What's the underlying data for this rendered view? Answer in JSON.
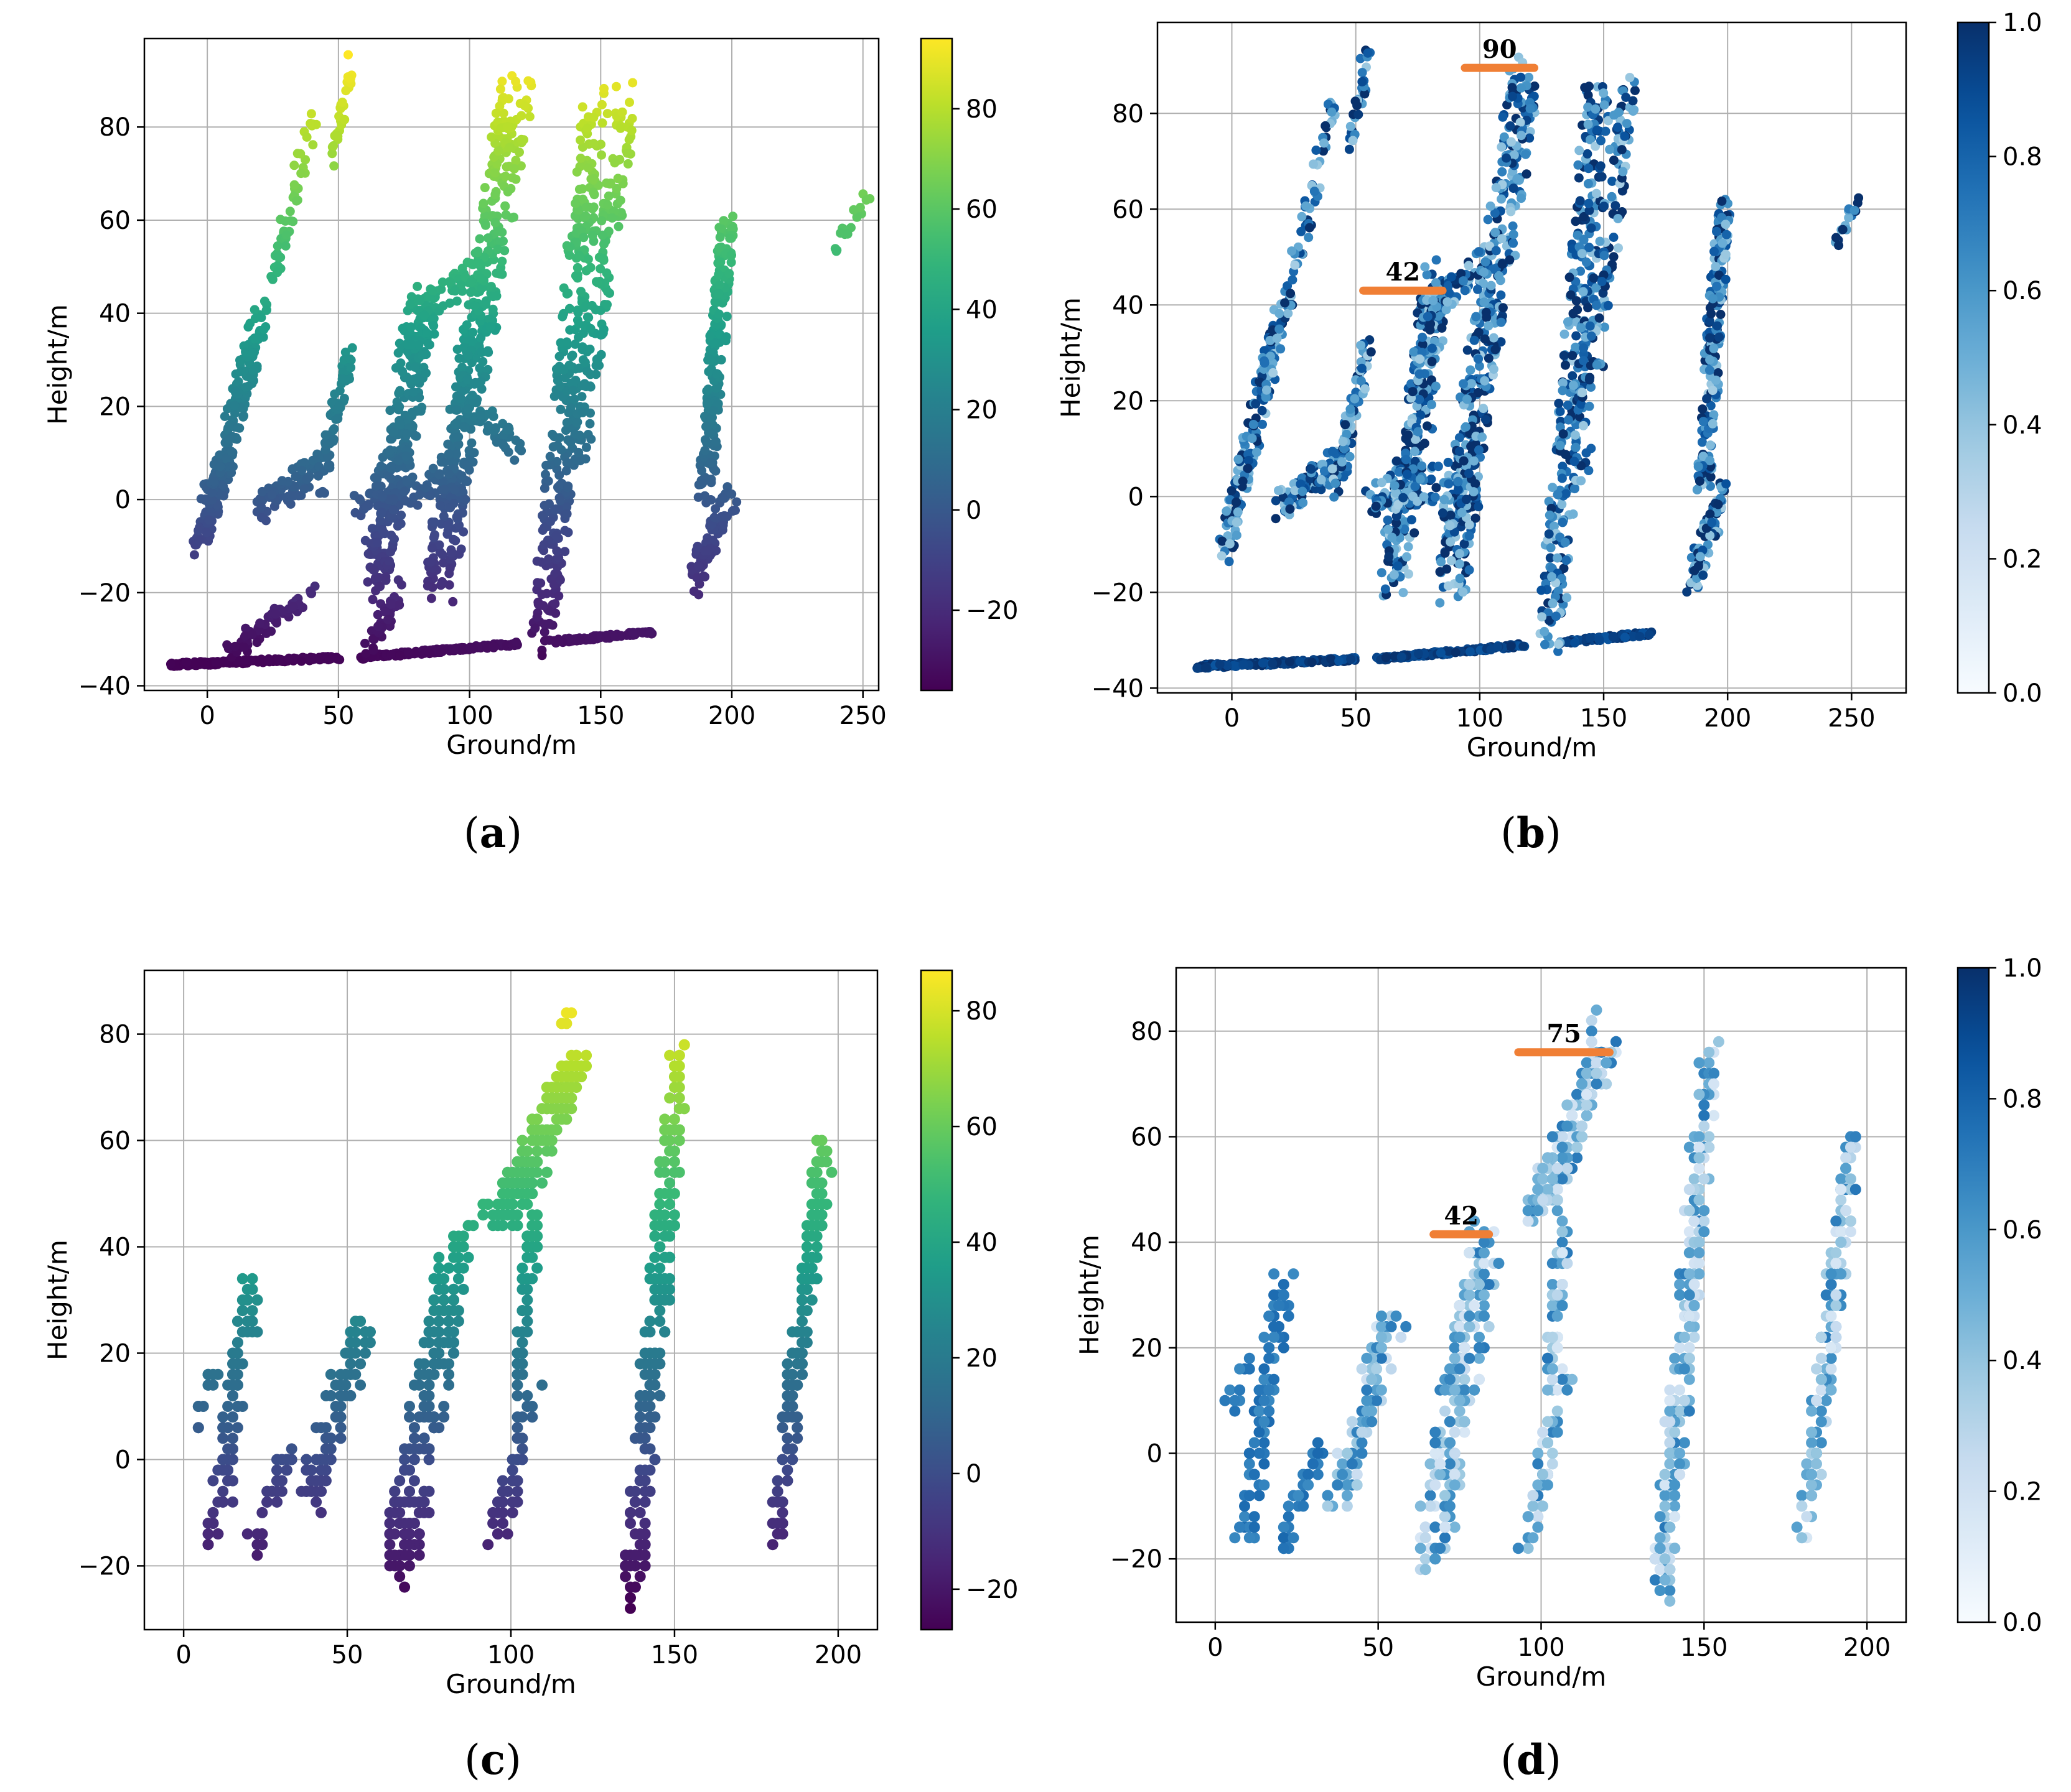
{
  "figure": {
    "captions": [
      "(a)",
      "(b)",
      "(c)",
      "(d)"
    ],
    "caption_letters": [
      "a",
      "b",
      "c",
      "d"
    ]
  },
  "chart_data": [
    {
      "id": "a",
      "type": "scatter",
      "caption": "(a)",
      "xlabel": "Ground/m",
      "ylabel": "Height/m",
      "xlim": [
        -24,
        256
      ],
      "ylim": [
        -41,
        99
      ],
      "xticks": [
        0,
        50,
        100,
        150,
        200,
        250
      ],
      "xtick_labels": [
        "0",
        "50",
        "100",
        "150",
        "200",
        "250"
      ],
      "yticks": [
        -40,
        -20,
        0,
        20,
        40,
        60,
        80
      ],
      "ytick_labels": [
        "−40",
        "−20",
        "0",
        "20",
        "40",
        "60",
        "80"
      ],
      "grid": true,
      "colormap": "viridis",
      "color_by": "height",
      "colorbar": {
        "range": [
          -36,
          94
        ],
        "ticks": [
          -20,
          0,
          20,
          40,
          60,
          80
        ],
        "tick_labels": [
          "−20",
          "0",
          "20",
          "40",
          "60",
          "80"
        ]
      },
      "marker_size": "medium",
      "annotations": [],
      "segments": [
        {
          "x0": -14,
          "y0": -35.5,
          "x1": 50,
          "y1": -34,
          "n": 170,
          "jx": 0.6,
          "jy": 0.4
        },
        {
          "x0": 58,
          "y0": -34,
          "x1": 118,
          "y1": -31,
          "n": 150,
          "jx": 0.6,
          "jy": 0.4
        },
        {
          "x0": 132,
          "y0": -30.5,
          "x1": 170,
          "y1": -28.5,
          "n": 100,
          "jx": 0.6,
          "jy": 0.4
        },
        {
          "x0": -3,
          "y0": -11,
          "x1": 22,
          "y1": 42,
          "n": 180,
          "jx": 3,
          "jy": 3
        },
        {
          "x0": 0,
          "y0": 0,
          "x1": 8,
          "y1": 8,
          "n": 60,
          "jx": 3,
          "jy": 3
        },
        {
          "x0": 20,
          "y0": -2,
          "x1": 44,
          "y1": 8,
          "n": 90,
          "jx": 3,
          "jy": 3
        },
        {
          "x0": 25,
          "y0": 46,
          "x1": 41,
          "y1": 83,
          "n": 50,
          "jx": 2,
          "jy": 3
        },
        {
          "x0": 48,
          "y0": 74,
          "x1": 55,
          "y1": 93,
          "n": 35,
          "jx": 1.5,
          "jy": 3
        },
        {
          "x0": 42,
          "y0": 2,
          "x1": 55,
          "y1": 32,
          "n": 70,
          "jx": 2,
          "jy": 3
        },
        {
          "x0": 8,
          "y0": -33,
          "x1": 40,
          "y1": -20,
          "n": 60,
          "jx": 2,
          "jy": 2
        },
        {
          "x0": 64,
          "y0": -18,
          "x1": 83,
          "y1": 44,
          "n": 300,
          "jx": 5,
          "jy": 7
        },
        {
          "x0": 57,
          "y0": 0,
          "x1": 98,
          "y1": 5,
          "n": 90,
          "jx": 4,
          "jy": 4
        },
        {
          "x0": 62,
          "y0": -32,
          "x1": 75,
          "y1": -18,
          "n": 40,
          "jx": 2,
          "jy": 2
        },
        {
          "x0": 88,
          "y0": -18,
          "x1": 118,
          "y1": 88,
          "n": 400,
          "jx": 6,
          "jy": 5
        },
        {
          "x0": 80,
          "y0": 40,
          "x1": 104,
          "y1": 50,
          "n": 50,
          "jx": 3,
          "jy": 3
        },
        {
          "x0": 100,
          "y0": 20,
          "x1": 120,
          "y1": 10,
          "n": 40,
          "jx": 3,
          "jy": 3
        },
        {
          "x0": 128,
          "y0": -30,
          "x1": 148,
          "y1": 86,
          "n": 300,
          "jx": 5,
          "jy": 5
        },
        {
          "x0": 140,
          "y0": 4,
          "x1": 160,
          "y1": 86,
          "n": 140,
          "jx": 4,
          "jy": 4
        },
        {
          "x0": 185,
          "y0": -18,
          "x1": 200,
          "y1": 2,
          "n": 80,
          "jx": 2.5,
          "jy": 3
        },
        {
          "x0": 190,
          "y0": 0,
          "x1": 198,
          "y1": 60,
          "n": 200,
          "jx": 3,
          "jy": 3
        },
        {
          "x0": 239,
          "y0": 53,
          "x1": 253,
          "y1": 67,
          "n": 20,
          "jx": 1,
          "jy": 1.5
        }
      ]
    },
    {
      "id": "b",
      "type": "scatter",
      "caption": "(b)",
      "xlabel": "Ground/m",
      "ylabel": "Height/m",
      "xlim": [
        -30,
        272
      ],
      "ylim": [
        -41,
        99
      ],
      "xticks": [
        0,
        50,
        100,
        150,
        200,
        250
      ],
      "xtick_labels": [
        "0",
        "50",
        "100",
        "150",
        "200",
        "250"
      ],
      "yticks": [
        -40,
        -20,
        0,
        20,
        40,
        60,
        80
      ],
      "ytick_labels": [
        "−40",
        "−20",
        "0",
        "20",
        "40",
        "60",
        "80"
      ],
      "grid": true,
      "colormap": "Blues",
      "color_by": "confidence",
      "colorbar": {
        "range": [
          0,
          1
        ],
        "ticks": [
          0.0,
          0.2,
          0.4,
          0.6,
          0.8,
          1.0
        ],
        "tick_labels": [
          "0.0",
          "0.2",
          "0.4",
          "0.6",
          "0.8",
          "1.0"
        ]
      },
      "marker_size": "medium",
      "annotations": [
        {
          "label": "42",
          "x0": 53,
          "x1": 85,
          "y": 43
        },
        {
          "label": "90",
          "x0": 94,
          "x1": 122,
          "y": 89.5
        }
      ],
      "segments": [
        {
          "x0": -14,
          "y0": -35.5,
          "x1": 50,
          "y1": -34,
          "n": 170,
          "jx": 0.6,
          "jy": 0.4
        },
        {
          "x0": 58,
          "y0": -34,
          "x1": 118,
          "y1": -31,
          "n": 150,
          "jx": 0.6,
          "jy": 0.4
        },
        {
          "x0": 132,
          "y0": -30.5,
          "x1": 170,
          "y1": -28.5,
          "n": 100,
          "jx": 0.6,
          "jy": 0.4
        },
        {
          "x0": -3,
          "y0": -11,
          "x1": 22,
          "y1": 42,
          "n": 180,
          "jx": 3,
          "jy": 3
        },
        {
          "x0": 20,
          "y0": -2,
          "x1": 44,
          "y1": 8,
          "n": 90,
          "jx": 3,
          "jy": 3
        },
        {
          "x0": 25,
          "y0": 46,
          "x1": 41,
          "y1": 83,
          "n": 50,
          "jx": 2,
          "jy": 3
        },
        {
          "x0": 48,
          "y0": 74,
          "x1": 55,
          "y1": 93,
          "n": 35,
          "jx": 1.5,
          "jy": 3
        },
        {
          "x0": 42,
          "y0": 2,
          "x1": 55,
          "y1": 32,
          "n": 70,
          "jx": 2,
          "jy": 3
        },
        {
          "x0": 64,
          "y0": -18,
          "x1": 83,
          "y1": 44,
          "n": 300,
          "jx": 5,
          "jy": 7
        },
        {
          "x0": 57,
          "y0": 0,
          "x1": 98,
          "y1": 5,
          "n": 90,
          "jx": 4,
          "jy": 4
        },
        {
          "x0": 88,
          "y0": -18,
          "x1": 118,
          "y1": 88,
          "n": 400,
          "jx": 6,
          "jy": 5
        },
        {
          "x0": 80,
          "y0": 40,
          "x1": 104,
          "y1": 50,
          "n": 50,
          "jx": 3,
          "jy": 3
        },
        {
          "x0": 128,
          "y0": -30,
          "x1": 148,
          "y1": 86,
          "n": 300,
          "jx": 5,
          "jy": 5
        },
        {
          "x0": 140,
          "y0": 4,
          "x1": 160,
          "y1": 86,
          "n": 140,
          "jx": 4,
          "jy": 4
        },
        {
          "x0": 185,
          "y0": -18,
          "x1": 200,
          "y1": 2,
          "n": 80,
          "jx": 2.5,
          "jy": 3
        },
        {
          "x0": 190,
          "y0": 0,
          "x1": 198,
          "y1": 60,
          "n": 200,
          "jx": 3,
          "jy": 3
        },
        {
          "x0": 244,
          "y0": 53,
          "x1": 254,
          "y1": 63,
          "n": 18,
          "jx": 1,
          "jy": 1.5
        }
      ]
    },
    {
      "id": "c",
      "type": "scatter",
      "caption": "(c)",
      "xlabel": "Ground/m",
      "ylabel": "Height/m",
      "xlim": [
        -12,
        212
      ],
      "ylim": [
        -32,
        92
      ],
      "xticks": [
        0,
        50,
        100,
        150,
        200
      ],
      "xtick_labels": [
        "0",
        "50",
        "100",
        "150",
        "200"
      ],
      "yticks": [
        -20,
        0,
        20,
        40,
        60,
        80
      ],
      "ytick_labels": [
        "−20",
        "0",
        "20",
        "40",
        "60",
        "80"
      ],
      "grid": true,
      "colormap": "viridis",
      "color_by": "height",
      "colorbar": {
        "range": [
          -27,
          87
        ],
        "ticks": [
          -20,
          0,
          20,
          40,
          60,
          80
        ],
        "tick_labels": [
          "−20",
          "0",
          "20",
          "40",
          "60",
          "80"
        ]
      },
      "marker_size": "large",
      "annotations": [],
      "segments": [
        {
          "x0": 9,
          "y0": -17,
          "x1": 21,
          "y1": 33,
          "n": 90,
          "jx": 3,
          "jy": 2
        },
        {
          "x0": 3,
          "y0": 5,
          "x1": 10,
          "y1": 18,
          "n": 12,
          "jx": 1.5,
          "jy": 1.5
        },
        {
          "x0": 20,
          "y0": -19,
          "x1": 32,
          "y1": 2,
          "n": 35,
          "jx": 2,
          "jy": 2
        },
        {
          "x0": 38,
          "y0": -9,
          "x1": 55,
          "y1": 26,
          "n": 90,
          "jx": 4,
          "jy": 3
        },
        {
          "x0": 66,
          "y0": -21,
          "x1": 83,
          "y1": 40,
          "n": 210,
          "jx": 5,
          "jy": 4
        },
        {
          "x0": 83,
          "y0": 40,
          "x1": 93,
          "y1": 48,
          "n": 12,
          "jx": 1,
          "jy": 1
        },
        {
          "x0": 95,
          "y0": -18,
          "x1": 107,
          "y1": 14,
          "n": 50,
          "jx": 2.5,
          "jy": 2.5
        },
        {
          "x0": 98,
          "y0": 45,
          "x1": 120,
          "y1": 76,
          "n": 190,
          "jx": 4,
          "jy": 3
        },
        {
          "x0": 102,
          "y0": 14,
          "x1": 107,
          "y1": 45,
          "n": 60,
          "jx": 1.5,
          "jy": 3
        },
        {
          "x0": 114,
          "y0": 78,
          "x1": 118,
          "y1": 87,
          "n": 4,
          "jx": 1,
          "jy": 1
        },
        {
          "x0": 137,
          "y0": -26,
          "x1": 152,
          "y1": 78,
          "n": 220,
          "jx": 3,
          "jy": 3
        },
        {
          "x0": 181,
          "y0": -15,
          "x1": 196,
          "y1": 60,
          "n": 150,
          "jx": 2.5,
          "jy": 3
        }
      ]
    },
    {
      "id": "d",
      "type": "scatter",
      "caption": "(d)",
      "xlabel": "Ground/m",
      "ylabel": "Height/m",
      "xlim": [
        -12,
        212
      ],
      "ylim": [
        -32,
        92
      ],
      "xticks": [
        0,
        50,
        100,
        150,
        200
      ],
      "xtick_labels": [
        "0",
        "50",
        "100",
        "150",
        "200"
      ],
      "yticks": [
        -20,
        0,
        20,
        40,
        60,
        80
      ],
      "ytick_labels": [
        "−20",
        "0",
        "20",
        "40",
        "60",
        "80"
      ],
      "grid": true,
      "colormap": "Blues",
      "color_by": "confidence",
      "colorbar": {
        "range": [
          0,
          1
        ],
        "ticks": [
          0.0,
          0.2,
          0.4,
          0.6,
          0.8,
          1.0
        ],
        "tick_labels": [
          "0.0",
          "0.2",
          "0.4",
          "0.6",
          "0.8",
          "1.0"
        ]
      },
      "marker_size": "large",
      "annotations": [
        {
          "label": "42",
          "x0": 67,
          "x1": 84,
          "y": 41.5
        },
        {
          "label": "75",
          "x0": 93,
          "x1": 121,
          "y": 76
        }
      ],
      "segments": [
        {
          "x0": 9,
          "y0": -17,
          "x1": 21,
          "y1": 33,
          "n": 90,
          "jx": 3,
          "jy": 2
        },
        {
          "x0": 3,
          "y0": 5,
          "x1": 10,
          "y1": 18,
          "n": 12,
          "jx": 1.5,
          "jy": 1.5
        },
        {
          "x0": 20,
          "y0": -19,
          "x1": 32,
          "y1": 2,
          "n": 35,
          "jx": 2,
          "jy": 2
        },
        {
          "x0": 38,
          "y0": -9,
          "x1": 55,
          "y1": 26,
          "n": 90,
          "jx": 4,
          "jy": 3
        },
        {
          "x0": 66,
          "y0": -21,
          "x1": 83,
          "y1": 40,
          "n": 210,
          "jx": 5,
          "jy": 4
        },
        {
          "x0": 95,
          "y0": -18,
          "x1": 107,
          "y1": 14,
          "n": 50,
          "jx": 2.5,
          "jy": 2.5
        },
        {
          "x0": 98,
          "y0": 45,
          "x1": 120,
          "y1": 76,
          "n": 190,
          "jx": 4,
          "jy": 3
        },
        {
          "x0": 102,
          "y0": 14,
          "x1": 107,
          "y1": 45,
          "n": 60,
          "jx": 1.5,
          "jy": 3
        },
        {
          "x0": 114,
          "y0": 78,
          "x1": 118,
          "y1": 87,
          "n": 4,
          "jx": 1,
          "jy": 1
        },
        {
          "x0": 137,
          "y0": -26,
          "x1": 152,
          "y1": 78,
          "n": 220,
          "jx": 3,
          "jy": 3
        },
        {
          "x0": 181,
          "y0": -15,
          "x1": 196,
          "y1": 60,
          "n": 150,
          "jx": 2.5,
          "jy": 3
        }
      ]
    }
  ],
  "colors": {
    "annotation": "#f07f35",
    "grid": "#b0b0b0",
    "axes": "#000000",
    "viridis": [
      "#440154",
      "#482878",
      "#3e4989",
      "#31688e",
      "#26828e",
      "#1f9e89",
      "#35b779",
      "#6ece58",
      "#b5de2b",
      "#fde725"
    ],
    "blues": [
      "#f7fbff",
      "#deebf7",
      "#c6dbef",
      "#9ecae1",
      "#6baed6",
      "#4292c6",
      "#2171b5",
      "#08519c",
      "#08306b"
    ]
  }
}
